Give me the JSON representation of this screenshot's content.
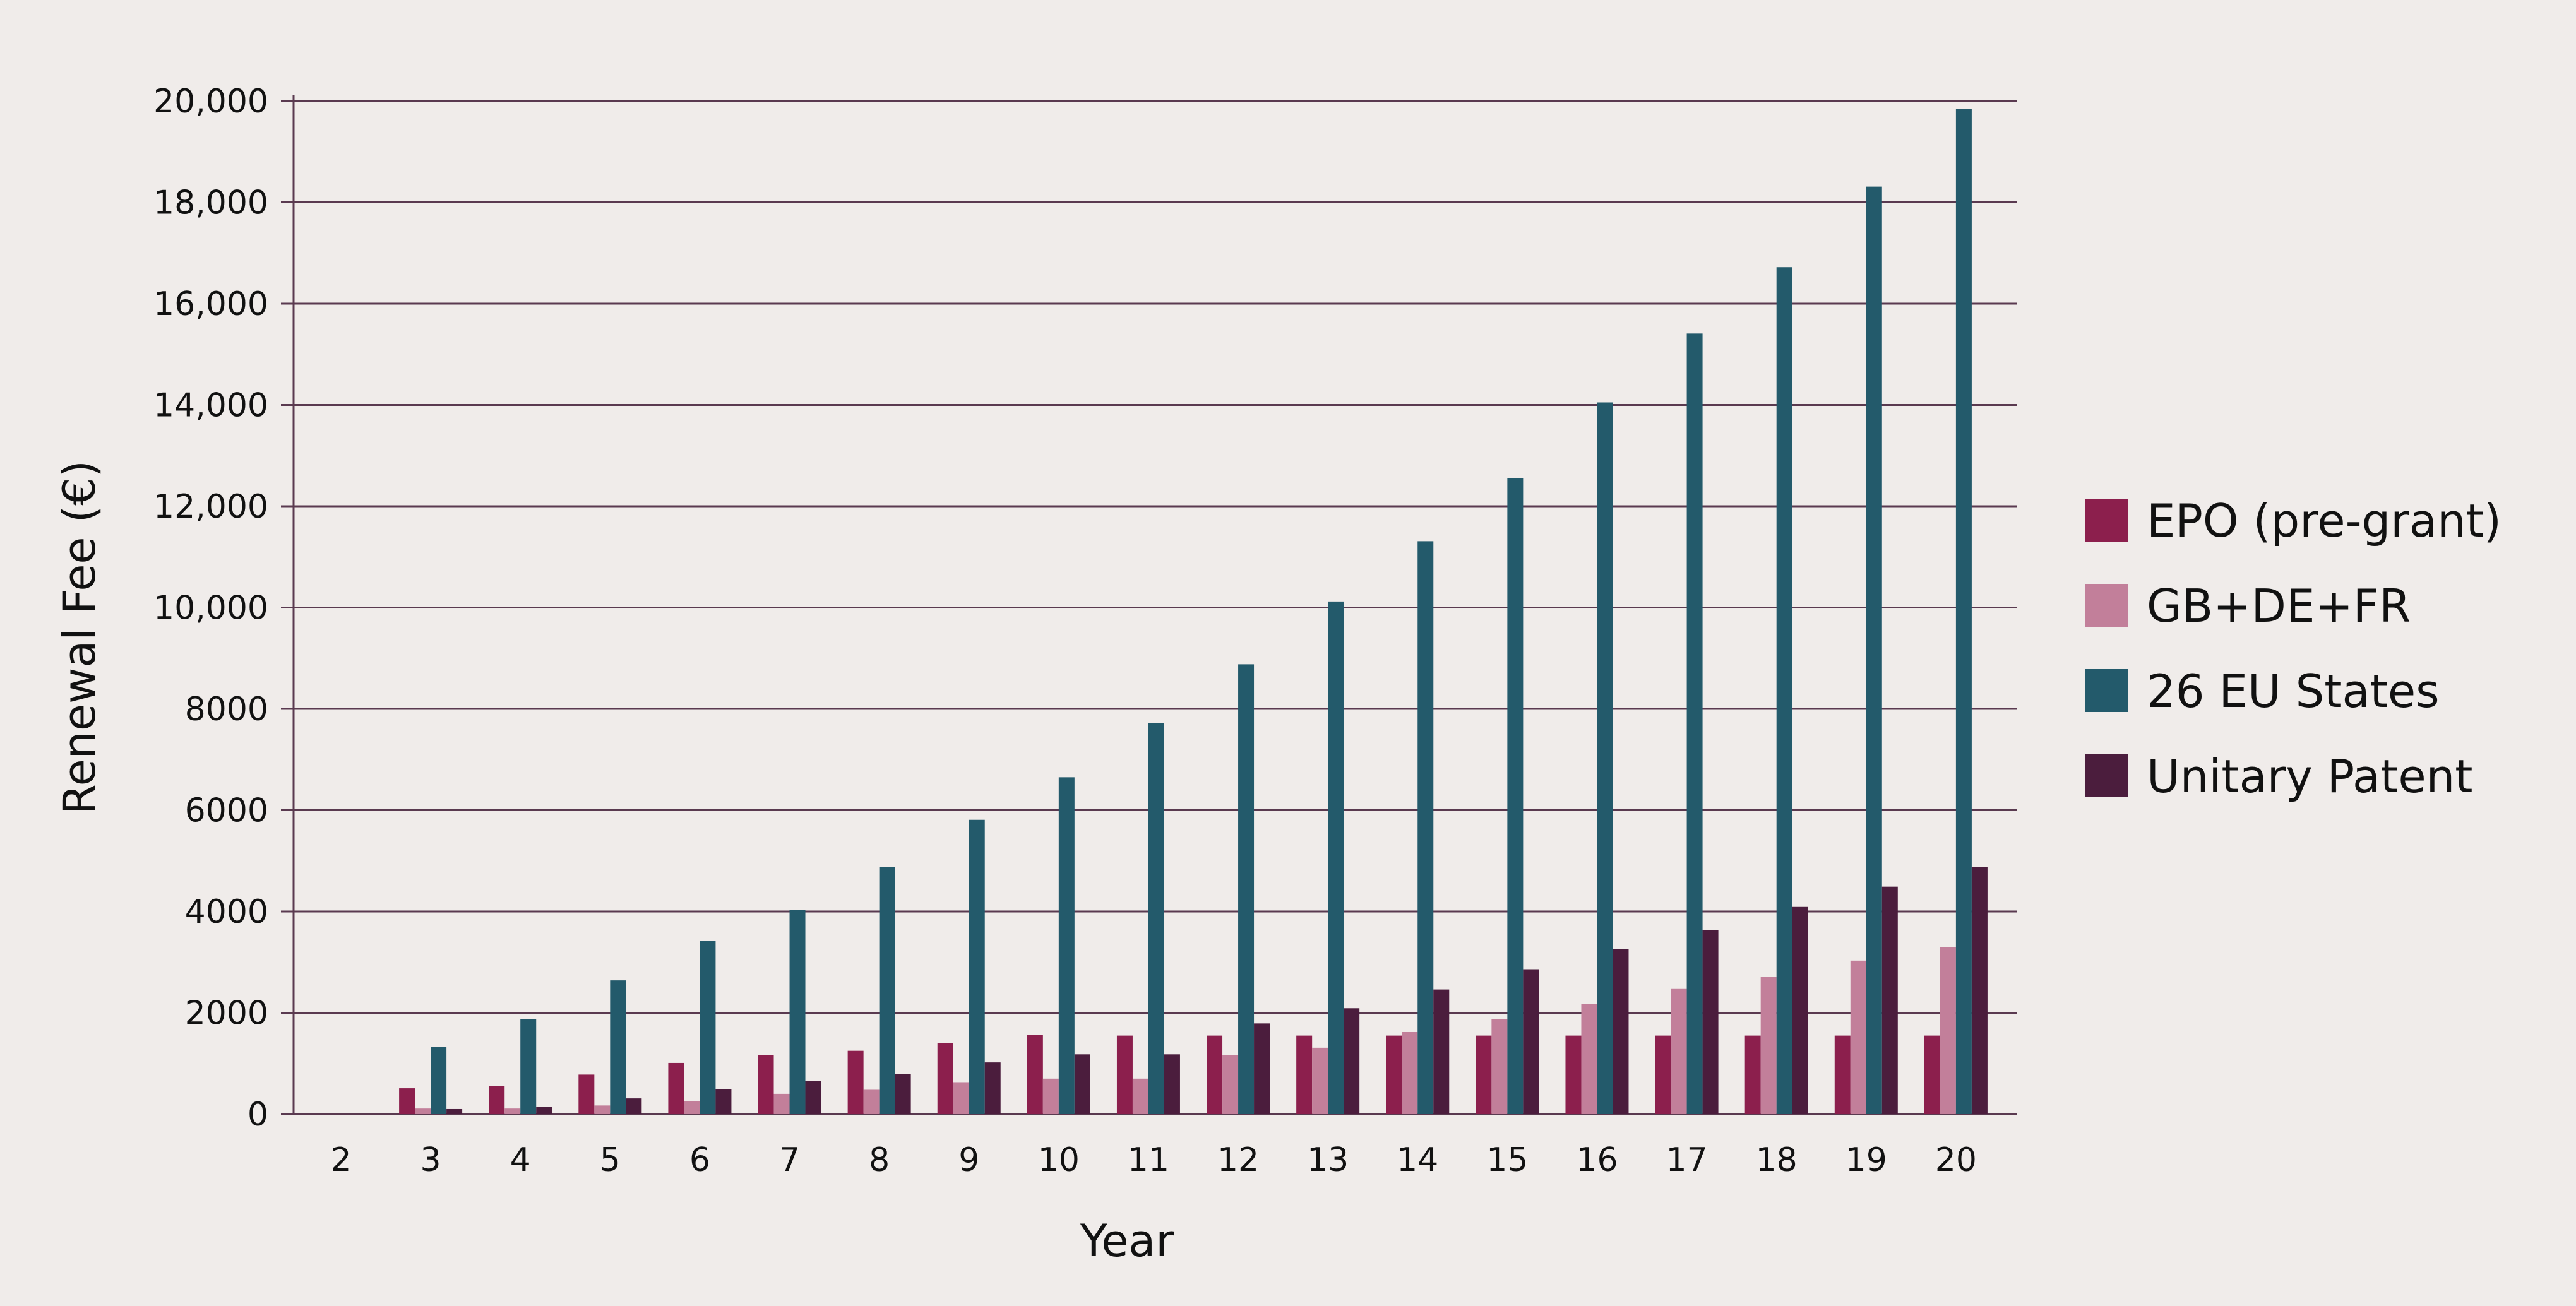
{
  "chart_data": {
    "type": "bar",
    "title": "",
    "xlabel": "Year",
    "ylabel": "Renewal Fee (€)",
    "ylim": [
      0,
      20000
    ],
    "yticks": [
      0,
      2000,
      4000,
      6000,
      8000,
      10000,
      12000,
      14000,
      16000,
      18000,
      20000
    ],
    "ytick_labels": [
      "0",
      "2000",
      "4000",
      "6000",
      "8000",
      "10,000",
      "12,000",
      "14,000",
      "16,000",
      "18,000",
      "20,000"
    ],
    "grid": "horizontal",
    "legend_position": "right",
    "categories": [
      "2",
      "3",
      "4",
      "5",
      "6",
      "7",
      "8",
      "9",
      "10",
      "11",
      "12",
      "13",
      "14",
      "15",
      "16",
      "17",
      "18",
      "19",
      "20"
    ],
    "series": [
      {
        "name": "EPO (pre-grant)",
        "color": "#8c1f4d",
        "values": [
          0,
          510,
          560,
          780,
          1010,
          1170,
          1250,
          1400,
          1570,
          1550,
          1550,
          1550,
          1550,
          1550,
          1550,
          1550,
          1550,
          1550,
          1550
        ]
      },
      {
        "name": "GB+DE+FR",
        "color": "#c27f9a",
        "values": [
          0,
          110,
          110,
          170,
          250,
          400,
          480,
          630,
          700,
          700,
          1160,
          1310,
          1620,
          1870,
          2180,
          2470,
          2710,
          3030,
          3300
        ]
      },
      {
        "name": "26 EU States",
        "color": "#235a6b",
        "values": [
          0,
          1330,
          1880,
          2640,
          3420,
          4030,
          4880,
          5810,
          6650,
          7720,
          8880,
          10120,
          11310,
          12550,
          14050,
          15410,
          16720,
          18310,
          19850
        ]
      },
      {
        "name": "Unitary Patent",
        "color": "#4b1d3d",
        "values": [
          0,
          100,
          140,
          310,
          490,
          650,
          790,
          1020,
          1180,
          1180,
          1790,
          2090,
          2460,
          2860,
          3260,
          3630,
          4090,
          4490,
          4880
        ]
      }
    ]
  }
}
